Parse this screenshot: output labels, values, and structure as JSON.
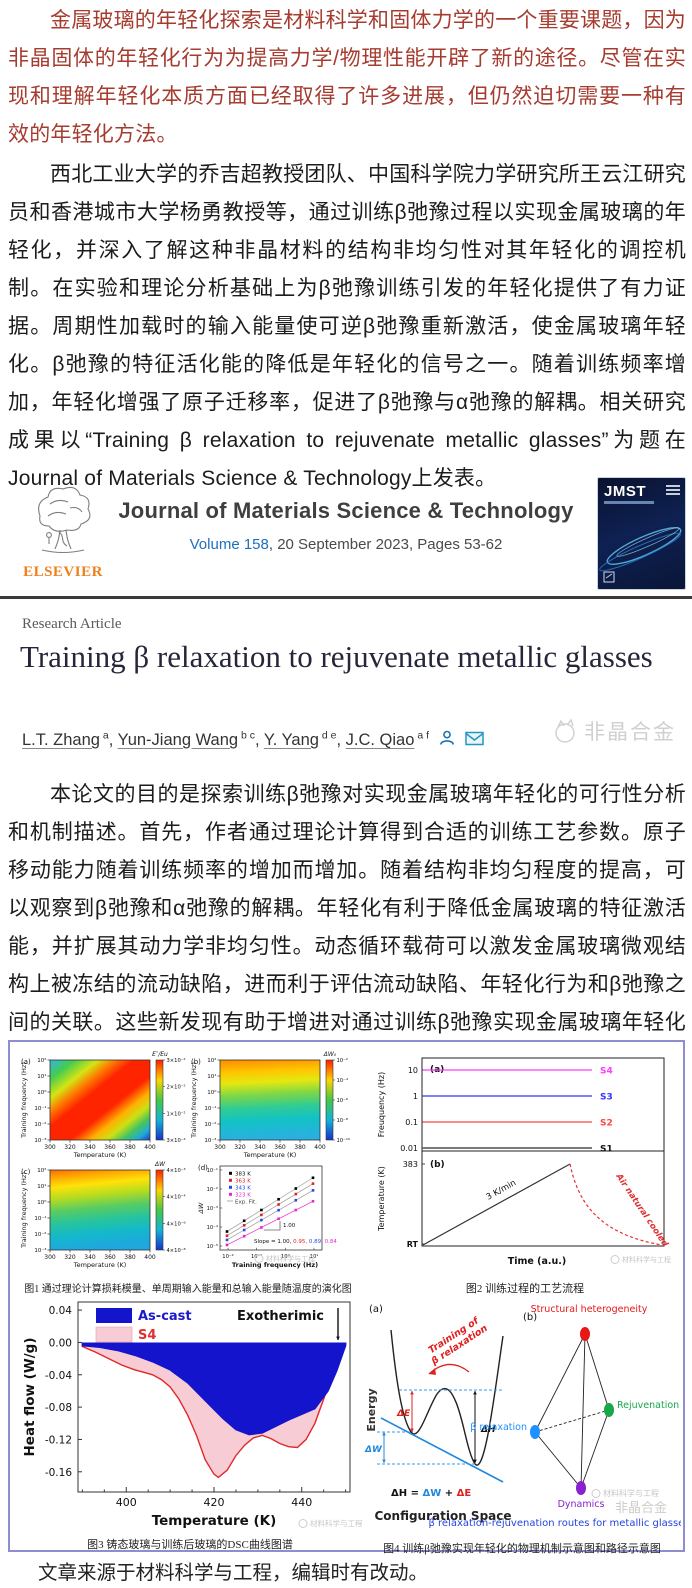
{
  "colors": {
    "intro_red": "#a63c30",
    "elsevier_orange": "#ef7f1a",
    "link_blue": "#1d6fbd",
    "figure_border": "#8d8dd0"
  },
  "paragraphs": {
    "p1": "金属玻璃的年轻化探索是材料科学和固体力学的一个重要课题，因为非晶固体的年轻化行为为提高力学/物理性能开辟了新的途径。尽管在实现和理解年轻化本质方面已经取得了许多进展，但仍然迫切需要一种有效的年轻化方法。",
    "p2": "西北工业大学的乔吉超教授团队、中国科学院力学研究所王云江研究员和香港城市大学杨勇教授等，通过训练β弛豫过程以实现金属玻璃的年轻化，并深入了解这种非晶材料的结构非均匀性对其年轻化的调控机制。在实验和理论分析基础上为β弛豫训练引发的年轻化提供了有力证据。周期性加载时的输入能量使可逆β弛豫重新激活，使金属玻璃年轻化。β弛豫的特征活化能的降低是年轻化的信号之一。随着训练频率增加，年轻化增强了原子迁移率，促进了β弛豫与α弛豫的解耦。相关研究成果以“Training β relaxation to rejuvenate metallic glasses”为题在Journal of Materials Science & Technology上发表。",
    "p3": "本论文的目的是探索训练β弛豫对实现金属玻璃年轻化的可行性分析和机制描述。首先，作者通过理论计算得到合适的训练工艺参数。原子移动能力随着训练频率的增加而增加。随着结构非均匀程度的提高，可以观察到β弛豫和α弛豫的解耦。年轻化有利于降低金属玻璃的特征激活能，并扩展其动力学非均匀性。动态循环载荷可以激发金属玻璃微观结构上被冻结的流动缺陷，进而利于评估流动缺陷、年轻化行为和β弛豫之间的关联。这些新发现有助于增进对通过训练β弛豫实现金属玻璃年轻化的进一步认识。",
    "footer": "文章来源于材料科学与工程，编辑时有改动。"
  },
  "journal_header": {
    "logo_text": "ELSEVIER",
    "title": "Journal of Materials Science & Technology",
    "volume_link": "Volume 158",
    "issue_rest": ", 20 September 2023, Pages 53-62",
    "cover_label": "JMST"
  },
  "article": {
    "type_label": "Research Article",
    "title": "Training β relaxation to rejuvenate metallic glasses",
    "authors": [
      {
        "name": "L.T. Zhang",
        "sup": "a"
      },
      {
        "name": "Yun-Jiang Wang",
        "sup": "b c"
      },
      {
        "name": "Y. Yang",
        "sup": "d e"
      },
      {
        "name": "J.C. Qiao",
        "sup": "a f"
      }
    ],
    "watermark": "非晶合金"
  },
  "figures": {
    "watermark1": "材料科学与工程",
    "watermark2": "非晶合金",
    "fig1": {
      "caption": "图1 通过理论计算损耗模量、单周期输入能量和总输入能量随温度的演化图",
      "xlabel": "Temperature (K)",
      "ylabel": "Training frequency (Hz)",
      "xticks": [
        "300",
        "320",
        "340",
        "360",
        "380",
        "400"
      ],
      "yticks": [
        "10²",
        "10¹",
        "10⁰",
        "10⁻¹",
        "10⁻²",
        "10⁻³"
      ],
      "cb_grad": {
        "dir": [
          0,
          0,
          0,
          1
        ],
        "stops": [
          [
            0,
            "#ff1e00"
          ],
          [
            0.25,
            "#ffd400"
          ],
          [
            0.5,
            "#46c846"
          ],
          [
            0.75,
            "#14b4d8"
          ],
          [
            1,
            "#1432c8"
          ]
        ]
      },
      "panels": {
        "a": {
          "tag": "(a)",
          "cb_label": "E″/Eu",
          "cb_ticks": [
            "3×10⁻²",
            "2×10⁻²",
            "1×10⁻²",
            "3×10⁻⁴"
          ],
          "grad": {
            "dir": [
              0,
              0,
              1,
              1
            ],
            "stops": [
              [
                0,
                "#30b4e4"
              ],
              [
                0.12,
                "#44cc50"
              ],
              [
                0.24,
                "#d4e414"
              ],
              [
                0.33,
                "#ff7800"
              ],
              [
                0.42,
                "#ff2400"
              ],
              [
                0.6,
                "#ff2400"
              ],
              [
                0.7,
                "#ffb000"
              ],
              [
                0.78,
                "#cce014"
              ],
              [
                0.86,
                "#44c460"
              ],
              [
                0.93,
                "#20aad8"
              ],
              [
                1,
                "#1a3ec8"
              ]
            ]
          }
        },
        "b": {
          "tag": "(b)",
          "cb_label": "ΔW₀",
          "cb_ticks": [
            "10⁻²",
            "10⁻⁴",
            "10⁻⁶",
            "10⁻⁸",
            "10⁻¹⁰"
          ],
          "grad": {
            "dir": [
              0,
              0,
              0.06,
              1
            ],
            "stops": [
              [
                0,
                "#ff8a00"
              ],
              [
                0.16,
                "#ffc400"
              ],
              [
                0.3,
                "#e4e810"
              ],
              [
                0.46,
                "#7cd648"
              ],
              [
                0.62,
                "#2ecc96"
              ],
              [
                0.78,
                "#12c2c6"
              ],
              [
                1,
                "#2ab0e0"
              ]
            ]
          }
        },
        "c": {
          "tag": "(c)",
          "cb_label": "ΔW",
          "cb_ticks": [
            "4×10⁻³",
            "4×10⁻⁴",
            "4×10⁻⁶",
            "4×10⁻⁸"
          ],
          "grad": {
            "dir": [
              0,
              0,
              0.12,
              1
            ],
            "stops": [
              [
                0,
                "#ff6a00"
              ],
              [
                0.1,
                "#ffa800"
              ],
              [
                0.22,
                "#ffe20a"
              ],
              [
                0.36,
                "#b8dc1e"
              ],
              [
                0.52,
                "#58cc62"
              ],
              [
                0.68,
                "#26c49e"
              ],
              [
                0.84,
                "#14b8cc"
              ],
              [
                1,
                "#1ea8dc"
              ]
            ]
          }
        },
        "d": {
          "tag": "(d)",
          "xlabel": "Training frequency (Hz)",
          "ylabel": "ΔW",
          "xticks": [
            "10⁻²",
            "10⁻¹",
            "10⁰",
            "10¹"
          ],
          "yticks": [
            "10⁻¹",
            "10⁻²",
            "10⁻³",
            "10⁻⁴",
            "10⁻⁵"
          ],
          "series": [
            {
              "name": "383 K",
              "color": "#000000"
            },
            {
              "name": "363 K",
              "color": "#e02424"
            },
            {
              "name": "343 K",
              "color": "#2848e0"
            },
            {
              "name": "323 K",
              "color": "#e628c8"
            }
          ],
          "fit_name": "Exp. Fit.",
          "fit_color": "#999999",
          "triangle_label": "1.00",
          "slope_prefix": "Slope = ",
          "slopes": [
            {
              "v": "1.00,",
              "color": "#111111"
            },
            {
              "v": "0.95,",
              "color": "#e02424"
            },
            {
              "v": "0.89,",
              "color": "#2848e0"
            },
            {
              "v": "0.84",
              "color": "#e628c8"
            }
          ]
        }
      }
    },
    "fig2": {
      "caption": "图2 训练过程的工艺流程",
      "panel_a": {
        "tag": "(a)",
        "ylabel": "Freuquency (Hz)",
        "yticks": [
          "10",
          "1",
          "0.1",
          "0.01"
        ],
        "lines": [
          {
            "name": "S4",
            "color": "#ff3cff"
          },
          {
            "name": "S3",
            "color": "#3434ff"
          },
          {
            "name": "S2",
            "color": "#ff4444"
          },
          {
            "name": "S1",
            "color": "#2a2a2a"
          }
        ]
      },
      "panel_b": {
        "tag": "(b)",
        "ylabel": "Temperature (K)",
        "yticks": [
          "383",
          "RT"
        ],
        "xlabel": "Time (a.u.)",
        "ramp_label": "3 K/min",
        "cool_label": "Air natural cooled",
        "cool_color": "#e03030"
      }
    },
    "fig3": {
      "caption": "图3 铸态玻璃与训练后玻璃的DSC曲线图谱",
      "type": "area",
      "xlabel": "Temperature (K)",
      "ylabel": "Heat flow (W/g)",
      "xticks": [
        400,
        420,
        440
      ],
      "yticks": [
        "0.04",
        "0.00",
        "-0.04",
        "-0.08",
        "-0.12",
        "-0.16"
      ],
      "xlim": [
        389,
        451
      ],
      "ylim": [
        0.05,
        -0.185
      ],
      "annotation": "Exotherimic",
      "series": [
        {
          "name": "S4",
          "fill": "#f8ccd4",
          "stroke": "#e02828",
          "label_color": "#e03030",
          "points": [
            [
              390,
              -0.005
            ],
            [
              393,
              -0.012
            ],
            [
              396,
              -0.02
            ],
            [
              399,
              -0.028
            ],
            [
              402,
              -0.034
            ],
            [
              404,
              -0.037
            ],
            [
              406,
              -0.04
            ],
            [
              408,
              -0.046
            ],
            [
              410,
              -0.055
            ],
            [
              412,
              -0.07
            ],
            [
              414,
              -0.09
            ],
            [
              416,
              -0.115
            ],
            [
              418,
              -0.145
            ],
            [
              420,
              -0.163
            ],
            [
              421,
              -0.167
            ],
            [
              423,
              -0.158
            ],
            [
              425,
              -0.14
            ],
            [
              427,
              -0.127
            ],
            [
              429,
              -0.118
            ],
            [
              431,
              -0.115
            ],
            [
              433,
              -0.119
            ],
            [
              435,
              -0.125
            ],
            [
              437,
              -0.129
            ],
            [
              439,
              -0.13
            ],
            [
              441,
              -0.12
            ],
            [
              443,
              -0.1
            ],
            [
              445,
              -0.07
            ],
            [
              447,
              -0.04
            ],
            [
              449,
              -0.012
            ],
            [
              450,
              -0.003
            ]
          ]
        },
        {
          "name": "As-cast",
          "fill": "#1414cc",
          "stroke": "#1414cc",
          "label_color": "#1a1acc",
          "points": [
            [
              390,
              -0.004
            ],
            [
              394,
              -0.006
            ],
            [
              398,
              -0.01
            ],
            [
              402,
              -0.016
            ],
            [
              406,
              -0.024
            ],
            [
              410,
              -0.034
            ],
            [
              414,
              -0.05
            ],
            [
              418,
              -0.072
            ],
            [
              422,
              -0.094
            ],
            [
              425,
              -0.108
            ],
            [
              428,
              -0.114
            ],
            [
              431,
              -0.112
            ],
            [
              434,
              -0.104
            ],
            [
              437,
              -0.096
            ],
            [
              440,
              -0.089
            ],
            [
              443,
              -0.082
            ],
            [
              446,
              -0.06
            ],
            [
              448,
              -0.035
            ],
            [
              450,
              -0.004
            ]
          ]
        }
      ]
    },
    "fig4": {
      "caption": "图4 训练β弛豫实现年轻化的物理机制示意图和路径示意图",
      "panel_a": {
        "tag": "(a)",
        "ylabel": "Energy",
        "xlabel": "Configuration Space",
        "train_label1": "Training of",
        "train_label2": "β relaxation",
        "dE": "ΔE",
        "dH": "ΔH",
        "dW": "ΔW",
        "eq": [
          {
            "v": "ΔH = ",
            "color": "#111111"
          },
          {
            "v": "ΔW",
            "color": "#2288dd"
          },
          {
            "v": " + ",
            "color": "#111111"
          },
          {
            "v": "ΔE",
            "color": "#e02020"
          }
        ]
      },
      "panel_b": {
        "tag": "(b)",
        "nodes": [
          {
            "name": "Structural heterogeneity",
            "color": "#e81818"
          },
          {
            "name": "β relaxation",
            "color": "#1e90ff"
          },
          {
            "name": "Rejuvenation",
            "color": "#18a848"
          },
          {
            "name": "Dynamics",
            "color": "#8822cc"
          }
        ],
        "footnote": "β relaxation-rejuvenation routes for metallic glasses",
        "footnote_color": "#2244dd"
      }
    }
  }
}
